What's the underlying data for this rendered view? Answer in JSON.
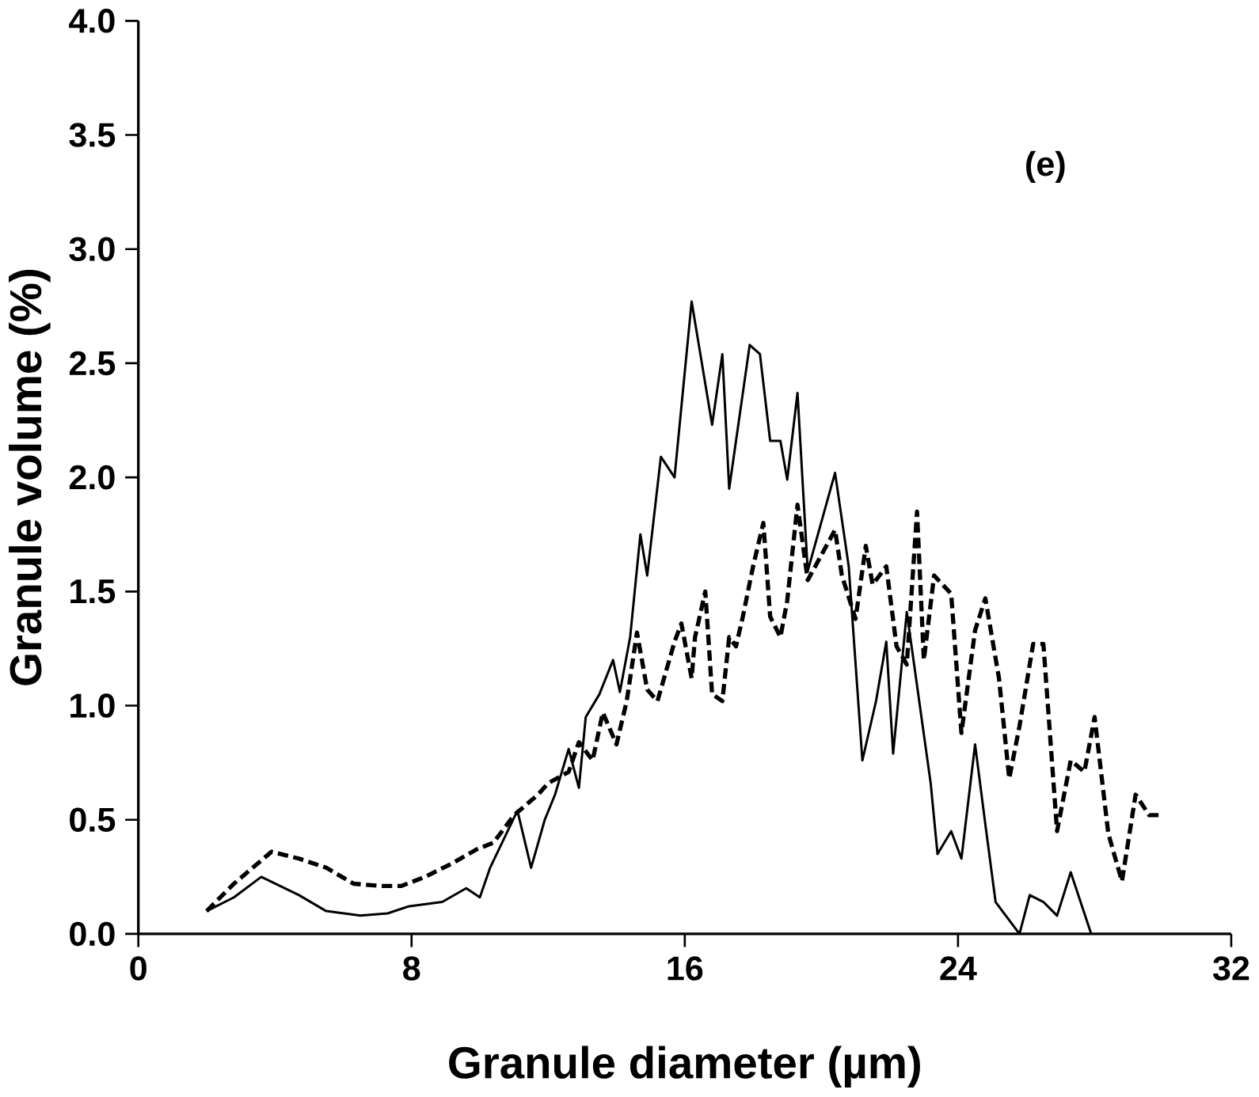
{
  "chart_data": {
    "type": "line",
    "xlabel": "Granule diameter (µm)",
    "ylabel": "Granule volume (%)",
    "annotations": [
      "(e)"
    ],
    "xlim": [
      0,
      32
    ],
    "xticks": [
      0,
      8,
      16,
      24,
      32
    ],
    "ylim": [
      0,
      4
    ],
    "yticks": [
      {
        "value": 0,
        "label": "0.0"
      },
      {
        "value": 0.5,
        "label": "0.5"
      },
      {
        "value": 1,
        "label": "1.0"
      },
      {
        "value": 1.5,
        "label": "1.5"
      },
      {
        "value": 2,
        "label": "2.0"
      },
      {
        "value": 2.5,
        "label": "2.5"
      },
      {
        "value": 3,
        "label": "3.0"
      },
      {
        "value": 3.5,
        "label": "3.5"
      },
      {
        "value": 4,
        "label": "4.0"
      }
    ],
    "grid": false,
    "series": [
      {
        "color": "#000000",
        "line_style": "solid",
        "x": [
          2.0,
          2.8,
          3.6,
          4.7,
          5.5,
          6.5,
          7.3,
          7.9,
          8.9,
          9.6,
          10.0,
          10.3,
          11.1,
          11.5,
          11.9,
          12.2,
          12.6,
          12.9,
          13.1,
          13.5,
          13.9,
          14.1,
          14.4,
          14.7,
          14.9,
          15.3,
          15.7,
          16.2,
          16.8,
          17.1,
          17.3,
          17.9,
          18.2,
          18.5,
          18.8,
          19.0,
          19.3,
          19.6,
          20.4,
          20.8,
          21.2,
          21.6,
          21.9,
          22.1,
          22.5,
          23.2,
          23.4,
          23.8,
          24.1,
          24.5,
          24.8,
          25.1,
          25.8,
          26.1,
          26.5,
          26.9,
          27.3,
          27.9
        ],
        "values": [
          0.1,
          0.16,
          0.25,
          0.17,
          0.1,
          0.08,
          0.09,
          0.12,
          0.14,
          0.2,
          0.16,
          0.29,
          0.54,
          0.29,
          0.5,
          0.61,
          0.81,
          0.64,
          0.95,
          1.05,
          1.2,
          1.06,
          1.3,
          1.75,
          1.57,
          2.09,
          2.0,
          2.77,
          2.23,
          2.54,
          1.95,
          2.58,
          2.54,
          2.16,
          2.16,
          1.99,
          2.37,
          1.59,
          2.02,
          1.61,
          0.76,
          1.02,
          1.28,
          0.79,
          1.41,
          0.66,
          0.35,
          0.45,
          0.33,
          0.83,
          0.48,
          0.14,
          0.0,
          0.17,
          0.14,
          0.08,
          0.27,
          0.0
        ]
      },
      {
        "color": "#000000",
        "line_style": "dashed",
        "x": [
          2.0,
          2.8,
          3.9,
          4.7,
          5.5,
          6.3,
          7.1,
          7.7,
          8.4,
          9.2,
          9.9,
          10.4,
          11.0,
          11.7,
          12.0,
          12.6,
          12.9,
          13.3,
          13.6,
          14.0,
          14.3,
          14.6,
          14.9,
          15.2,
          15.7,
          15.9,
          16.2,
          16.3,
          16.6,
          16.8,
          17.1,
          17.3,
          17.5,
          17.7,
          18.0,
          18.3,
          18.5,
          18.8,
          19.0,
          19.3,
          19.6,
          20.4,
          20.6,
          21.0,
          21.3,
          21.5,
          21.9,
          22.2,
          22.5,
          22.8,
          23.0,
          23.3,
          23.8,
          24.1,
          24.5,
          24.8,
          25.2,
          25.5,
          25.8,
          26.2,
          26.5,
          26.9,
          27.3,
          27.7,
          28.0,
          28.4,
          28.8,
          29.2,
          29.6,
          30.0
        ],
        "values": [
          0.1,
          0.22,
          0.36,
          0.33,
          0.29,
          0.22,
          0.21,
          0.21,
          0.25,
          0.31,
          0.37,
          0.4,
          0.52,
          0.61,
          0.66,
          0.71,
          0.84,
          0.76,
          0.97,
          0.83,
          1.02,
          1.32,
          1.07,
          1.02,
          1.28,
          1.36,
          1.12,
          1.3,
          1.5,
          1.05,
          1.02,
          1.3,
          1.26,
          1.39,
          1.61,
          1.8,
          1.39,
          1.3,
          1.46,
          1.88,
          1.55,
          1.77,
          1.57,
          1.38,
          1.7,
          1.53,
          1.61,
          1.26,
          1.18,
          1.85,
          1.2,
          1.57,
          1.49,
          0.88,
          1.33,
          1.47,
          1.12,
          0.68,
          0.91,
          1.27,
          1.27,
          0.45,
          0.76,
          0.71,
          0.95,
          0.44,
          0.23,
          0.61,
          0.52,
          0.52
        ]
      }
    ]
  }
}
